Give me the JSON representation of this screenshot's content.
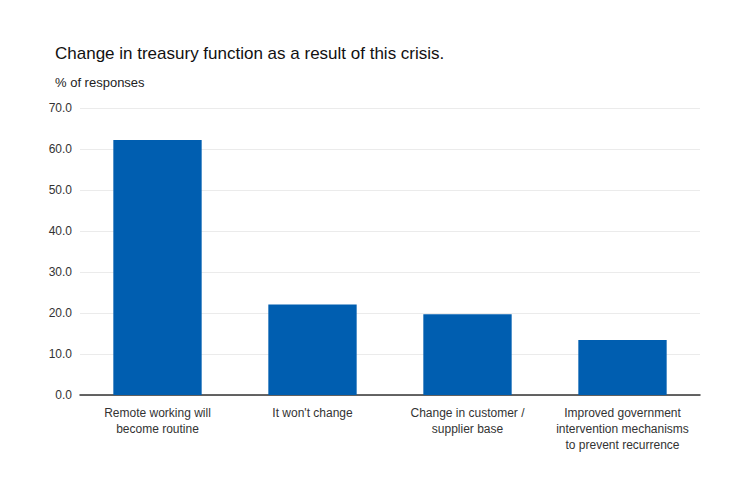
{
  "chart_data": {
    "type": "bar",
    "title": "Change in treasury function as a result of this crisis.",
    "subtitle": "% of responses",
    "categories": [
      "Remote working will\nbecome routine",
      "It won't change",
      "Change in customer /\nsupplier base",
      "Improved government\nintervention mechanisms\nto prevent recurrence"
    ],
    "values": [
      62.2,
      22.1,
      19.7,
      13.4
    ],
    "color": "#005eb0",
    "ylim": [
      0,
      70
    ],
    "yticks": [
      {
        "value": 0,
        "label": "0.0"
      },
      {
        "value": 10,
        "label": "10.0"
      },
      {
        "value": 20,
        "label": "20.0"
      },
      {
        "value": 30,
        "label": "30.0"
      },
      {
        "value": 40,
        "label": "40.0"
      },
      {
        "value": 50,
        "label": "50.0"
      },
      {
        "value": 60,
        "label": "60.0"
      },
      {
        "value": 70,
        "label": "70.0"
      }
    ],
    "grid": true
  }
}
